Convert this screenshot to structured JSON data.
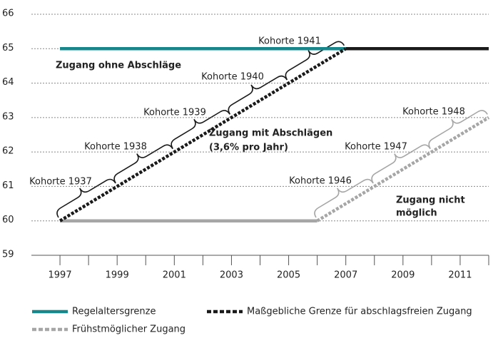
{
  "chart_data": {
    "type": "line",
    "xlim": [
      1996,
      2012
    ],
    "ylim": [
      59,
      66
    ],
    "xticks": [
      1997,
      1999,
      2001,
      2003,
      2005,
      2007,
      2009,
      2011
    ],
    "xminor_ticks": [
      1998,
      2000,
      2002,
      2004,
      2006,
      2008,
      2010,
      2012
    ],
    "yticks": [
      59,
      60,
      61,
      62,
      63,
      64,
      65,
      66
    ],
    "grid": true,
    "series": [
      {
        "name": "Regelaltersgrenze",
        "color": "#17878c",
        "style": "solid",
        "x": [
          1997,
          2007
        ],
        "values": [
          65,
          65
        ]
      },
      {
        "name": "Maßgebliche Grenze für abschlagsfreien Zugang",
        "color": "#1a1a1a",
        "style": "dotted",
        "x": [
          1997,
          2007,
          2012
        ],
        "values": [
          60,
          65,
          65
        ]
      },
      {
        "name": "Frühstmöglicher Zugang",
        "color": "#a6a6a6",
        "style": "dotted",
        "x": [
          1997,
          2006,
          2012
        ],
        "values": [
          60,
          60,
          63
        ]
      }
    ],
    "annotations": [
      "Kohorte 1937",
      "Kohorte 1938",
      "Kohorte 1939",
      "Kohorte 1940",
      "Kohorte 1941",
      "Kohorte 1946",
      "Kohorte 1947",
      "Kohorte 1948",
      "Zugang ohne Abschläge",
      "Zugang mit Abschlägen",
      "(3,6% pro Jahr)",
      "Zugang nicht",
      "möglich"
    ]
  }
}
